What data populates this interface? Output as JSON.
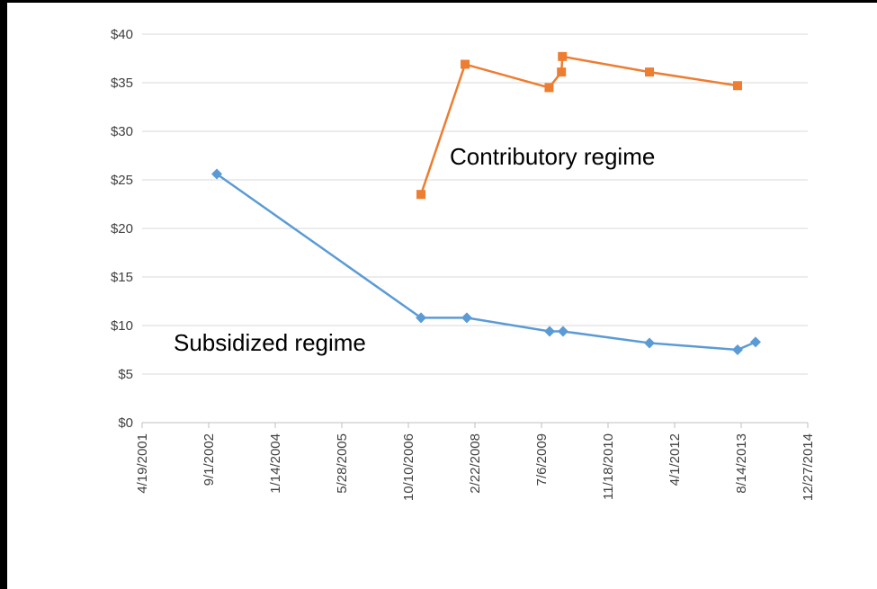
{
  "chart_data": {
    "type": "line",
    "annotations": [
      "Contributory regime",
      "Subsidized regime"
    ],
    "xlim": [
      "4/19/2001",
      "12/27/2014"
    ],
    "xticks": [
      "4/19/2001",
      "9/1/2002",
      "1/14/2004",
      "5/28/2005",
      "10/10/2006",
      "2/22/2008",
      "7/6/2009",
      "11/18/2010",
      "4/1/2012",
      "8/14/2013",
      "12/27/2014"
    ],
    "ylim": [
      0,
      40
    ],
    "yticks": [
      {
        "value": 0,
        "label": "$0"
      },
      {
        "value": 5,
        "label": "$5"
      },
      {
        "value": 10,
        "label": "$10"
      },
      {
        "value": 15,
        "label": "$15"
      },
      {
        "value": 20,
        "label": "$20"
      },
      {
        "value": 25,
        "label": "$25"
      },
      {
        "value": 30,
        "label": "$30"
      },
      {
        "value": 35,
        "label": "$35"
      },
      {
        "value": 40,
        "label": "$40"
      }
    ],
    "grid": true,
    "series": [
      {
        "color": "#ed7d31",
        "marker": "square",
        "x": [
          "1/13/2007",
          "12/10/2007",
          "9/1/2009",
          "12/3/2009",
          "12/10/2009",
          "9/25/2011",
          "7/18/2013"
        ],
        "values": [
          23.5,
          36.9,
          34.5,
          36.1,
          37.7,
          36.1,
          34.7
        ]
      },
      {
        "color": "#5b9bd5",
        "marker": "diamond",
        "x": [
          "11/1/2002",
          "1/13/2007",
          "12/23/2007",
          "9/5/2009",
          "12/15/2009",
          "9/25/2011",
          "7/18/2013",
          "11/30/2013"
        ],
        "values": [
          25.6,
          10.8,
          10.8,
          9.4,
          9.4,
          8.2,
          7.5,
          8.3
        ]
      }
    ]
  }
}
